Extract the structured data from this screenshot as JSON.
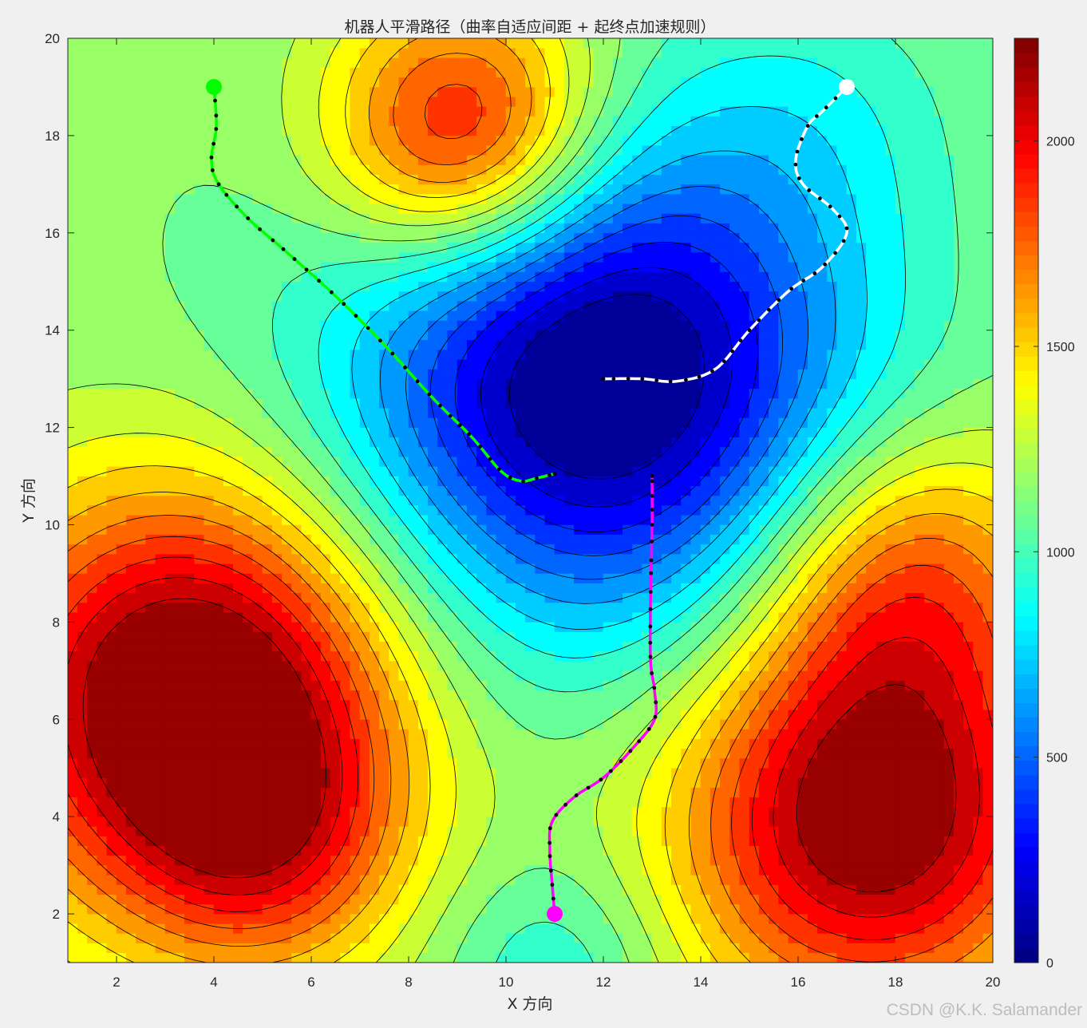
{
  "chart_data": {
    "type": "contour",
    "title": "机器人平滑路径（曲率自适应间距 + 起终点加速规则）",
    "xlabel": "X 方向",
    "ylabel": "Y 方向",
    "xlim": [
      1,
      20
    ],
    "ylim": [
      1,
      20
    ],
    "x_ticks": [
      2,
      4,
      6,
      8,
      10,
      12,
      14,
      16,
      18,
      20
    ],
    "y_ticks": [
      2,
      4,
      6,
      8,
      10,
      12,
      14,
      16,
      18,
      20
    ],
    "colormap": "jet",
    "colorbar": {
      "min": 0,
      "max": 2250,
      "ticks": [
        0,
        500,
        1000,
        1500,
        2000
      ]
    },
    "field_sources": [
      {
        "x": 12,
        "y": 13,
        "amp": -1250,
        "sigma": 3.6
      },
      {
        "x": 3.5,
        "y": 6.5,
        "amp": 1250,
        "sigma": 3.0
      },
      {
        "x": 5,
        "y": 3.5,
        "amp": 500,
        "sigma": 2.0
      },
      {
        "x": 17.5,
        "y": 4.0,
        "amp": 1150,
        "sigma": 2.8
      },
      {
        "x": 18.2,
        "y": 9,
        "amp": 600,
        "sigma": 2.2
      },
      {
        "x": 9.2,
        "y": 18,
        "amp": 1000,
        "sigma": 2.0
      },
      {
        "x": 16.5,
        "y": 18.5,
        "amp": -150,
        "sigma": 2.0
      },
      {
        "x": 11,
        "y": 0.8,
        "amp": -250,
        "sigma": 1.6
      }
    ],
    "field_base": 1150,
    "paths": [
      {
        "color": "#00ff00",
        "start_marker_color": "#00ff00",
        "points": [
          [
            4,
            19
          ],
          [
            4.05,
            18.2
          ],
          [
            3.95,
            17.5
          ],
          [
            4.1,
            17
          ],
          [
            4.7,
            16.3
          ],
          [
            5.5,
            15.6
          ],
          [
            6.5,
            14.7
          ],
          [
            7.5,
            13.7
          ],
          [
            8.5,
            12.6
          ],
          [
            9.3,
            11.8
          ],
          [
            9.9,
            11.1
          ],
          [
            10.3,
            10.9
          ],
          [
            10.6,
            10.95
          ],
          [
            11,
            11.05
          ]
        ]
      },
      {
        "color": "#ffffff",
        "start_marker_color": "#ffffff",
        "points": [
          [
            17,
            19
          ],
          [
            16.5,
            18.5
          ],
          [
            16.2,
            18.2
          ],
          [
            15.95,
            17.5
          ],
          [
            16.1,
            17
          ],
          [
            16.7,
            16.5
          ],
          [
            17,
            16
          ],
          [
            16.5,
            15.3
          ],
          [
            15.8,
            14.8
          ],
          [
            15,
            14
          ],
          [
            14.3,
            13.2
          ],
          [
            13.5,
            12.95
          ],
          [
            12.8,
            13
          ],
          [
            12,
            13
          ]
        ]
      },
      {
        "color": "#ff00ff",
        "start_marker_color": "#ff00ff",
        "points": [
          [
            11,
            2
          ],
          [
            10.95,
            2.6
          ],
          [
            10.9,
            3.3
          ],
          [
            10.95,
            3.9
          ],
          [
            11.4,
            4.4
          ],
          [
            12,
            4.8
          ],
          [
            12.6,
            5.4
          ],
          [
            13.05,
            6.0
          ],
          [
            13.05,
            6.6
          ],
          [
            12.97,
            7.2
          ],
          [
            12.97,
            8.5
          ],
          [
            13,
            10
          ],
          [
            13,
            11
          ]
        ]
      }
    ]
  },
  "watermark": "CSDN @K.K. Salamander"
}
